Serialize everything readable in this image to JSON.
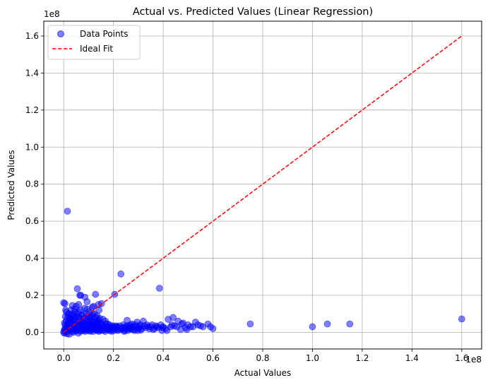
{
  "chart_data": {
    "type": "scatter",
    "title": "Actual vs. Predicted Values (Linear Regression)",
    "xlabel": "Actual Values",
    "ylabel": "Predicted Values",
    "x_offset_label": "1e8",
    "y_offset_label": "1e8",
    "xlim": [
      -0.08,
      1.68
    ],
    "ylim": [
      -0.09,
      1.68
    ],
    "x_ticks": [
      0.0,
      0.2,
      0.4,
      0.6,
      0.8,
      1.0,
      1.2,
      1.4,
      1.6
    ],
    "x_tick_labels": [
      "0.0",
      "0.2",
      "0.4",
      "0.6",
      "0.8",
      "1.0",
      "1.2",
      "1.4",
      "1.6"
    ],
    "y_ticks": [
      0.0,
      0.2,
      0.4,
      0.6,
      0.8,
      1.0,
      1.2,
      1.4,
      1.6
    ],
    "y_tick_labels": [
      "0.0",
      "0.2",
      "0.4",
      "0.6",
      "0.8",
      "1.0",
      "1.2",
      "1.4",
      "1.6"
    ],
    "grid": true,
    "legend_position": "top-left",
    "legend": [
      "Data Points",
      "Ideal Fit"
    ],
    "colors": {
      "points": "#0000ff",
      "ideal_fit": "#ff0000",
      "grid": "#b0b0b0"
    },
    "series": [
      {
        "name": "Data Points",
        "kind": "scatter",
        "points": [
          [
            0.0,
            0.0
          ],
          [
            0.002,
            0.01
          ],
          [
            0.003,
            -0.005
          ],
          [
            0.005,
            0.02
          ],
          [
            0.006,
            0.04
          ],
          [
            0.008,
            0.015
          ],
          [
            0.01,
            0.06
          ],
          [
            0.012,
            0.03
          ],
          [
            0.014,
            -0.008
          ],
          [
            0.016,
            0.08
          ],
          [
            0.018,
            0.05
          ],
          [
            0.02,
            0.01
          ],
          [
            0.022,
            0.1
          ],
          [
            0.024,
            0.035
          ],
          [
            0.026,
            0.065
          ],
          [
            0.028,
            0.02
          ],
          [
            0.03,
            0.12
          ],
          [
            0.032,
            0.045
          ],
          [
            0.034,
            0.005
          ],
          [
            0.036,
            0.09
          ],
          [
            0.038,
            0.025
          ],
          [
            0.04,
            0.07
          ],
          [
            0.042,
            0.015
          ],
          [
            0.044,
            0.11
          ],
          [
            0.046,
            0.04
          ],
          [
            0.048,
            0.008
          ],
          [
            0.05,
            0.14
          ],
          [
            0.052,
            0.055
          ],
          [
            0.054,
            0.02
          ],
          [
            0.056,
            0.085
          ],
          [
            0.058,
            0.03
          ],
          [
            0.06,
            0.15
          ],
          [
            0.062,
            0.045
          ],
          [
            0.064,
            0.012
          ],
          [
            0.066,
            0.075
          ],
          [
            0.068,
            0.2
          ],
          [
            0.07,
            0.035
          ],
          [
            0.072,
            0.06
          ],
          [
            0.074,
            0.018
          ],
          [
            0.076,
            0.095
          ],
          [
            0.078,
            0.028
          ],
          [
            0.08,
            0.05
          ],
          [
            0.082,
            0.01
          ],
          [
            0.084,
            0.13
          ],
          [
            0.086,
            0.04
          ],
          [
            0.088,
            0.022
          ],
          [
            0.09,
            0.07
          ],
          [
            0.092,
            0.015
          ],
          [
            0.094,
            0.165
          ],
          [
            0.096,
            0.033
          ],
          [
            0.098,
            0.055
          ],
          [
            0.1,
            0.025
          ],
          [
            0.102,
            0.11
          ],
          [
            0.104,
            0.042
          ],
          [
            0.106,
            0.012
          ],
          [
            0.108,
            0.08
          ],
          [
            0.11,
            0.03
          ],
          [
            0.112,
            0.06
          ],
          [
            0.114,
            0.02
          ],
          [
            0.116,
            0.1
          ],
          [
            0.118,
            0.035
          ],
          [
            0.12,
            0.14
          ],
          [
            0.122,
            0.018
          ],
          [
            0.124,
            0.07
          ],
          [
            0.126,
            0.028
          ],
          [
            0.128,
            0.205
          ],
          [
            0.13,
            0.045
          ],
          [
            0.132,
            0.015
          ],
          [
            0.134,
            0.09
          ],
          [
            0.136,
            0.038
          ],
          [
            0.138,
            0.058
          ],
          [
            0.14,
            0.022
          ],
          [
            0.142,
            0.12
          ],
          [
            0.144,
            0.03
          ],
          [
            0.146,
            0.01
          ],
          [
            0.15,
            0.05
          ],
          [
            0.152,
            0.155
          ],
          [
            0.155,
            0.025
          ],
          [
            0.158,
            0.07
          ],
          [
            0.16,
            0.035
          ],
          [
            0.165,
            0.015
          ],
          [
            0.168,
            0.06
          ],
          [
            0.172,
            0.028
          ],
          [
            0.176,
            0.045
          ],
          [
            0.18,
            0.02
          ],
          [
            0.185,
            0.04
          ],
          [
            0.19,
            0.012
          ],
          [
            0.195,
            0.03
          ],
          [
            0.2,
            0.025
          ],
          [
            0.205,
            0.205
          ],
          [
            0.21,
            0.035
          ],
          [
            0.215,
            0.015
          ],
          [
            0.22,
            0.028
          ],
          [
            0.23,
            0.315
          ],
          [
            0.235,
            0.02
          ],
          [
            0.24,
            0.04
          ],
          [
            0.245,
            0.01
          ],
          [
            0.25,
            0.03
          ],
          [
            0.255,
            0.065
          ],
          [
            0.26,
            0.018
          ],
          [
            0.265,
            0.035
          ],
          [
            0.27,
            0.025
          ],
          [
            0.275,
            0.045
          ],
          [
            0.28,
            0.015
          ],
          [
            0.29,
            0.03
          ],
          [
            0.295,
            0.055
          ],
          [
            0.3,
            0.02
          ],
          [
            0.305,
            0.035
          ],
          [
            0.31,
            0.012
          ],
          [
            0.32,
            0.06
          ],
          [
            0.33,
            0.025
          ],
          [
            0.335,
            0.04
          ],
          [
            0.345,
            0.018
          ],
          [
            0.35,
            0.03
          ],
          [
            0.36,
            0.015
          ],
          [
            0.37,
            0.035
          ],
          [
            0.38,
            0.025
          ],
          [
            0.385,
            0.238
          ],
          [
            0.39,
            0.04
          ],
          [
            0.395,
            0.01
          ],
          [
            0.4,
            0.03
          ],
          [
            0.41,
            0.02
          ],
          [
            0.42,
            0.07
          ],
          [
            0.43,
            0.03
          ],
          [
            0.44,
            0.08
          ],
          [
            0.445,
            0.035
          ],
          [
            0.46,
            0.06
          ],
          [
            0.47,
            0.015
          ],
          [
            0.48,
            0.05
          ],
          [
            0.49,
            0.025
          ],
          [
            0.5,
            0.04
          ],
          [
            0.51,
            0.03
          ],
          [
            0.53,
            0.055
          ],
          [
            0.55,
            0.035
          ],
          [
            0.58,
            0.045
          ],
          [
            0.6,
            0.02
          ],
          [
            0.75,
            0.045
          ],
          [
            1.0,
            0.03
          ],
          [
            1.06,
            0.045
          ],
          [
            1.15,
            0.045
          ],
          [
            1.6,
            0.072
          ],
          [
            0.0,
            0.16
          ],
          [
            0.005,
            0.155
          ],
          [
            0.008,
            0.12
          ],
          [
            0.015,
            0.654
          ],
          [
            0.018,
            0.095
          ],
          [
            0.025,
            0.075
          ],
          [
            0.035,
            0.145
          ],
          [
            0.045,
            0.125
          ],
          [
            0.055,
            0.235
          ],
          [
            0.06,
            0.11
          ],
          [
            0.065,
            0.2
          ],
          [
            0.085,
            0.19
          ],
          [
            0.095,
            0.125
          ],
          [
            0.115,
            0.135
          ],
          [
            0.14,
            0.15
          ],
          [
            0.003,
            0.05
          ],
          [
            0.007,
            0.085
          ],
          [
            0.011,
            0.11
          ],
          [
            0.013,
            0.005
          ],
          [
            0.017,
            0.025
          ],
          [
            0.021,
            0.045
          ],
          [
            0.023,
            -0.01
          ],
          [
            0.027,
            0.055
          ],
          [
            0.029,
            0.075
          ],
          [
            0.031,
            0.015
          ],
          [
            0.033,
            0.095
          ],
          [
            0.037,
            0.06
          ],
          [
            0.039,
            0.0
          ],
          [
            0.041,
            0.04
          ],
          [
            0.043,
            0.085
          ],
          [
            0.047,
            0.03
          ],
          [
            0.049,
            0.065
          ],
          [
            0.051,
            0.01
          ],
          [
            0.053,
            0.1
          ],
          [
            0.057,
            0.05
          ],
          [
            0.059,
            -0.005
          ],
          [
            0.061,
            0.08
          ],
          [
            0.063,
            0.035
          ],
          [
            0.067,
            0.005
          ],
          [
            0.069,
            0.12
          ],
          [
            0.071,
            0.045
          ],
          [
            0.073,
            0.09
          ],
          [
            0.077,
            0.01
          ],
          [
            0.079,
            0.065
          ],
          [
            0.081,
            0.03
          ],
          [
            0.083,
            0.075
          ],
          [
            0.087,
            0.005
          ],
          [
            0.089,
            0.04
          ],
          [
            0.091,
            0.1
          ],
          [
            0.093,
            0.02
          ],
          [
            0.097,
            0.085
          ],
          [
            0.099,
            0.01
          ],
          [
            0.101,
            0.045
          ],
          [
            0.103,
            0.03
          ],
          [
            0.105,
            0.07
          ],
          [
            0.107,
            0.005
          ],
          [
            0.109,
            0.05
          ],
          [
            0.111,
            0.09
          ],
          [
            0.113,
            0.015
          ],
          [
            0.117,
            0.06
          ],
          [
            0.119,
            0.005
          ],
          [
            0.121,
            0.04
          ],
          [
            0.123,
            0.1
          ],
          [
            0.125,
            0.015
          ],
          [
            0.127,
            0.055
          ],
          [
            0.129,
            0.025
          ],
          [
            0.131,
            0.08
          ],
          [
            0.133,
            0.01
          ],
          [
            0.135,
            0.05
          ],
          [
            0.137,
            0.02
          ],
          [
            0.139,
            0.065
          ],
          [
            0.141,
            0.005
          ],
          [
            0.143,
            0.04
          ],
          [
            0.145,
            0.075
          ],
          [
            0.148,
            0.015
          ],
          [
            0.153,
            0.04
          ],
          [
            0.157,
            0.01
          ],
          [
            0.162,
            0.03
          ],
          [
            0.167,
            0.005
          ],
          [
            0.17,
            0.045
          ],
          [
            0.175,
            0.015
          ],
          [
            0.178,
            0.03
          ],
          [
            0.183,
            0.01
          ],
          [
            0.188,
            0.025
          ],
          [
            0.193,
            0.005
          ],
          [
            0.198,
            0.035
          ],
          [
            0.203,
            0.01
          ],
          [
            0.208,
            0.02
          ],
          [
            0.213,
            0.03
          ],
          [
            0.218,
            0.01
          ],
          [
            0.225,
            0.035
          ],
          [
            0.228,
            0.015
          ],
          [
            0.238,
            0.025
          ],
          [
            0.243,
            0.005
          ],
          [
            0.248,
            0.02
          ],
          [
            0.253,
            0.035
          ],
          [
            0.258,
            0.01
          ],
          [
            0.263,
            0.025
          ],
          [
            0.268,
            0.04
          ],
          [
            0.273,
            0.015
          ],
          [
            0.278,
            0.03
          ],
          [
            0.285,
            0.01
          ],
          [
            0.288,
            0.04
          ],
          [
            0.298,
            0.01
          ],
          [
            0.303,
            0.025
          ],
          [
            0.308,
            0.04
          ],
          [
            0.315,
            0.02
          ],
          [
            0.325,
            0.035
          ],
          [
            0.34,
            0.03
          ],
          [
            0.355,
            0.04
          ],
          [
            0.365,
            0.02
          ],
          [
            0.375,
            0.03
          ],
          [
            0.398,
            0.025
          ],
          [
            0.415,
            0.01
          ],
          [
            0.435,
            0.04
          ],
          [
            0.455,
            0.03
          ],
          [
            0.475,
            0.045
          ],
          [
            0.495,
            0.015
          ],
          [
            0.52,
            0.03
          ],
          [
            0.54,
            0.04
          ],
          [
            0.56,
            0.03
          ],
          [
            0.59,
            0.03
          ]
        ]
      },
      {
        "name": "Ideal Fit",
        "kind": "line",
        "style": "dashed",
        "x": [
          0.0,
          1.6
        ],
        "y": [
          0.0,
          1.6
        ]
      }
    ]
  }
}
